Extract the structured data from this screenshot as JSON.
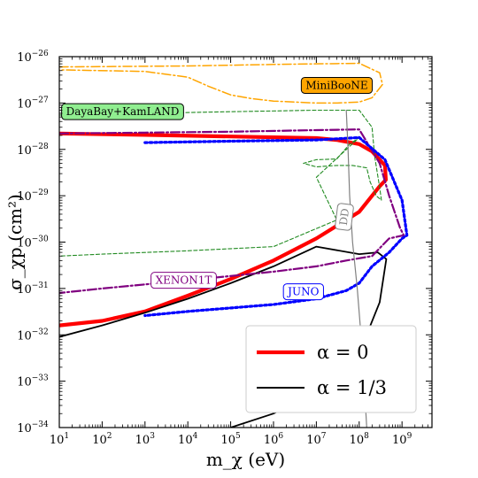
{
  "chart_data": {
    "type": "line",
    "xlabel": "m_χ (eV)",
    "ylabel": "σ_χp (cm²)",
    "xscale": "log",
    "yscale": "log",
    "xlim": [
      10.0,
      5000000000.0
    ],
    "ylim": [
      1e-34,
      1e-26
    ],
    "grid": false,
    "x_ticks": [
      {
        "value": 10.0,
        "base": "10",
        "exp": "1"
      },
      {
        "value": 100.0,
        "base": "10",
        "exp": "2"
      },
      {
        "value": 1000.0,
        "base": "10",
        "exp": "3"
      },
      {
        "value": 10000.0,
        "base": "10",
        "exp": "4"
      },
      {
        "value": 100000.0,
        "base": "10",
        "exp": "5"
      },
      {
        "value": 1000000.0,
        "base": "10",
        "exp": "6"
      },
      {
        "value": 10000000.0,
        "base": "10",
        "exp": "7"
      },
      {
        "value": 100000000.0,
        "base": "10",
        "exp": "8"
      },
      {
        "value": 1000000000.0,
        "base": "10",
        "exp": "9"
      }
    ],
    "y_ticks": [
      {
        "value": 1e-34,
        "base": "10",
        "exp": "−34"
      },
      {
        "value": 1e-33,
        "base": "10",
        "exp": "−33"
      },
      {
        "value": 1e-32,
        "base": "10",
        "exp": "−32"
      },
      {
        "value": 1e-31,
        "base": "10",
        "exp": "−31"
      },
      {
        "value": 1e-30,
        "base": "10",
        "exp": "−30"
      },
      {
        "value": 1e-29,
        "base": "10",
        "exp": "−29"
      },
      {
        "value": 1e-28,
        "base": "10",
        "exp": "−28"
      },
      {
        "value": 1e-27,
        "base": "10",
        "exp": "−27"
      },
      {
        "value": 1e-26,
        "base": "10",
        "exp": "−26"
      }
    ],
    "legend": {
      "placement": "lower-right",
      "entries": [
        {
          "series": "alpha0",
          "label": "α = 0"
        },
        {
          "series": "alpha13",
          "label": "α = 1/3"
        }
      ]
    },
    "series": [
      {
        "id": "alpha0",
        "name": "α = 0",
        "color": "#ff0000",
        "style": "solid",
        "points": [
          [
            10.0,
            1.6e-32
          ],
          [
            100.0,
            2e-32
          ],
          [
            1000.0,
            3.2e-32
          ],
          [
            10000.0,
            7e-32
          ],
          [
            100000.0,
            1.6e-31
          ],
          [
            1000000.0,
            4e-31
          ],
          [
            10000000.0,
            1.2e-30
          ],
          [
            100000000.0,
            4.5e-30
          ],
          [
            300000000.0,
            1.6e-29
          ],
          [
            420000000.0,
            2.2e-29
          ],
          [
            400000000.0,
            4.5e-29
          ],
          [
            200000000.0,
            9e-29
          ],
          [
            100000000.0,
            1.3e-28
          ],
          [
            30000000.0,
            1.6e-28
          ],
          [
            10000000.0,
            1.75e-28
          ],
          [
            100000.0,
            1.9e-28
          ],
          [
            1000.0,
            2.05e-28
          ],
          [
            10.0,
            2.2e-28
          ]
        ]
      },
      {
        "id": "alpha13",
        "name": "α = 1/3",
        "color": "#000000",
        "style": "solid",
        "points": [
          [
            10.0,
            9e-33
          ],
          [
            100.0,
            1.6e-32
          ],
          [
            1000.0,
            3e-32
          ],
          [
            10000.0,
            6e-32
          ],
          [
            100000.0,
            1.3e-31
          ],
          [
            1000000.0,
            3e-31
          ],
          [
            10000000.0,
            8e-31
          ],
          [
            100000000.0,
            5.5e-31
          ],
          [
            270000000.0,
            6e-31
          ],
          [
            430000000.0,
            4.3e-31
          ],
          [
            300000000.0,
            5e-32
          ],
          [
            100000000.0,
            4e-33
          ],
          [
            10000000.0,
            6e-34
          ],
          [
            1000000.0,
            2e-34
          ],
          [
            100000.0,
            1e-34
          ]
        ]
      },
      {
        "id": "miniboone",
        "name": "MiniBooNE",
        "color": "#ffa500",
        "style": "dashdot",
        "points": [
          [
            10.0,
            6e-27
          ],
          [
            10000.0,
            6.3e-27
          ],
          [
            1000000.0,
            6.8e-27
          ],
          [
            100000000.0,
            7.2e-27
          ],
          [
            300000000.0,
            4.5e-27
          ],
          [
            350000000.0,
            2.5e-27
          ],
          [
            200000000.0,
            1.3e-27
          ],
          [
            100000000.0,
            1.05e-27
          ],
          [
            30000000.0,
            1e-27
          ],
          [
            10000000.0,
            1e-27
          ],
          [
            1000000.0,
            1.1e-27
          ],
          [
            300000.0,
            1.25e-27
          ],
          [
            100000.0,
            1.5e-27
          ],
          [
            30000.0,
            2.3e-27
          ],
          [
            10000.0,
            3.6e-27
          ],
          [
            1000.0,
            4.8e-27
          ],
          [
            10.0,
            5.2e-27
          ]
        ]
      },
      {
        "id": "dayabay",
        "name": "DayaBay+KamLAND",
        "color": "#228b22",
        "style": "dashed",
        "points": [
          [
            10.0,
            5.5e-28
          ],
          [
            1000.0,
            6e-28
          ],
          [
            100000.0,
            6.5e-28
          ],
          [
            10000000.0,
            7e-28
          ],
          [
            100000000.0,
            7e-28
          ],
          [
            200000000.0,
            3e-28
          ],
          [
            230000000.0,
            7e-29
          ],
          [
            300000000.0,
            1.5e-29
          ],
          [
            330000000.0,
            8e-30
          ],
          [
            250000000.0,
            1e-29
          ],
          [
            180000000.0,
            2e-29
          ],
          [
            150000000.0,
            4e-29
          ],
          [
            70000000.0,
            4.5e-29
          ],
          [
            30000000.0,
            4.5e-29
          ],
          [
            10000000.0,
            4.2e-29
          ],
          [
            5000000.0,
            5e-29
          ],
          [
            10000000.0,
            6e-29
          ],
          [
            30000000.0,
            6.2e-29
          ],
          [
            60000000.0,
            1.3e-28
          ],
          [
            100000000.0,
            1.8e-28
          ],
          [
            10000000.0,
            2.5e-29
          ],
          [
            30000000.0,
            3e-30
          ],
          [
            1000000.0,
            8e-31
          ],
          [
            10000.0,
            6.5e-31
          ],
          [
            100.0,
            5.5e-31
          ],
          [
            10.0,
            5e-31
          ]
        ]
      },
      {
        "id": "xenon1t",
        "name": "XENON1T",
        "color": "#800080",
        "style": "dashdot",
        "points": [
          [
            10.0,
            2.2e-28
          ],
          [
            1000.0,
            2.3e-28
          ],
          [
            100000.0,
            2.4e-28
          ],
          [
            10000000.0,
            2.6e-28
          ],
          [
            100000000.0,
            2.7e-28
          ],
          [
            300000000.0,
            5e-29
          ],
          [
            500000000.0,
            1e-29
          ],
          [
            900000000.0,
            2e-30
          ],
          [
            1100000000.0,
            1.4e-30
          ],
          [
            500000000.0,
            1.2e-30
          ],
          [
            200000000.0,
            5e-31
          ],
          [
            50000000.0,
            4e-31
          ],
          [
            10000000.0,
            3e-31
          ],
          [
            1000000.0,
            2.3e-31
          ],
          [
            10000.0,
            1.5e-31
          ],
          [
            100.0,
            1e-31
          ],
          [
            10.0,
            8e-32
          ]
        ]
      },
      {
        "id": "juno",
        "name": "JUNO",
        "color": "#0000ff",
        "style": "dotted",
        "points": [
          [
            1000.0,
            1.4e-28
          ],
          [
            100000.0,
            1.5e-28
          ],
          [
            10000000.0,
            1.6e-28
          ],
          [
            100000000.0,
            1.8e-28
          ],
          [
            400000000.0,
            6e-29
          ],
          [
            1000000000.0,
            8e-30
          ],
          [
            1300000000.0,
            1.4e-30
          ],
          [
            1000000000.0,
            1.2e-30
          ],
          [
            500000000.0,
            6e-31
          ],
          [
            200000000.0,
            3e-31
          ],
          [
            100000000.0,
            1.3e-31
          ],
          [
            50000000.0,
            9e-32
          ],
          [
            10000000.0,
            6e-32
          ],
          [
            1000000.0,
            4.5e-32
          ],
          [
            10000.0,
            3.2e-32
          ],
          [
            1000.0,
            2.6e-32
          ]
        ]
      },
      {
        "id": "dd",
        "name": "DD",
        "color": "#808080",
        "style": "solid",
        "points": [
          [
            50000000.0,
            7e-28
          ],
          [
            55000000.0,
            1e-28
          ],
          [
            60000000.0,
            1e-29
          ],
          [
            70000000.0,
            1e-30
          ],
          [
            90000000.0,
            1e-31
          ],
          [
            110000000.0,
            1e-32
          ],
          [
            130000000.0,
            1e-33
          ],
          [
            150000000.0,
            1e-34
          ]
        ]
      }
    ],
    "annotations": [
      {
        "text": "MiniBooNE",
        "x": 30000000.0,
        "y": 2.4e-27,
        "bg": "#ffa500",
        "border": "#000000",
        "color": "#000000"
      },
      {
        "text": "DayaBay+KamLAND",
        "x": 300.0,
        "y": 6.5e-28,
        "bg": "#90ee90",
        "border": "#000000",
        "color": "#000000"
      },
      {
        "text": "XENON1T",
        "x": 8000.0,
        "y": 1.5e-31,
        "bg": "#ffffff",
        "border": "#800080",
        "color": "#800080"
      },
      {
        "text": "JUNO",
        "x": 5000000.0,
        "y": 8.5e-32,
        "bg": "#ffffff",
        "border": "#0000ff",
        "color": "#0000ff"
      },
      {
        "text": "DD",
        "x": 45000000.0,
        "y": 3.5e-30,
        "bg": "#ffffff",
        "border": "#808080",
        "color": "#808080",
        "rotate": -83
      }
    ]
  }
}
